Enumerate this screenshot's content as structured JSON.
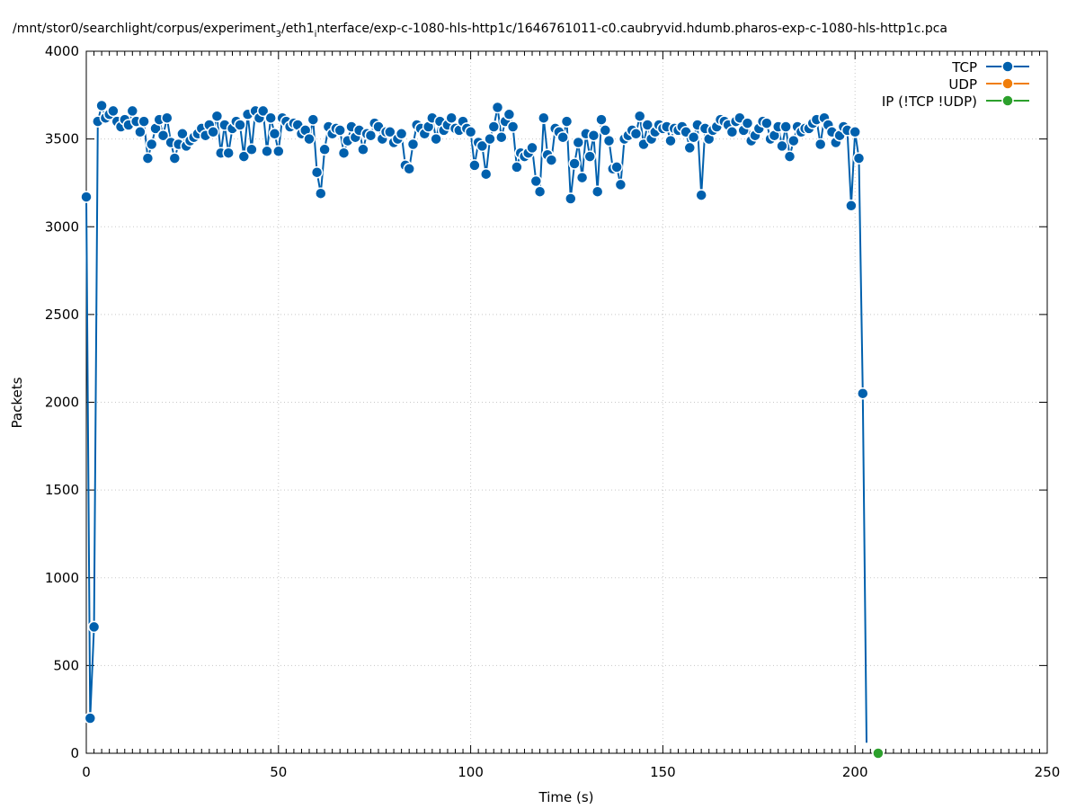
{
  "chart_data": {
    "type": "line",
    "title": "/mnt/stor0/searchlight/corpus/experiment",
    "title_sub": "3",
    "title_mid": "/eth1",
    "title_sub2": "i",
    "title_end": "nterface/exp-c-1080-hls-http1c/1646761011-c0.caubryvid.hdumb.pharos-exp-c-1080-hls-http1c.pca",
    "xlabel": "Time (s)",
    "ylabel": "Packets",
    "xlim": [
      0,
      250
    ],
    "ylim": [
      0,
      4000
    ],
    "xticks": [
      0,
      50,
      100,
      150,
      200,
      250
    ],
    "yticks": [
      0,
      500,
      1000,
      1500,
      2000,
      2500,
      3000,
      3500,
      4000
    ],
    "grid": true,
    "legend_position": "top-right",
    "colors": {
      "tcp": "#0060ad",
      "udp": "#f07d0a",
      "ip": "#2ca02c",
      "grid": "#c8c8c8"
    },
    "series": [
      {
        "name": "TCP",
        "x": [
          0,
          1,
          2,
          3,
          4,
          5,
          6,
          7,
          8,
          9,
          10,
          11,
          12,
          13,
          14,
          15,
          16,
          17,
          18,
          19,
          20,
          21,
          22,
          23,
          24,
          25,
          26,
          27,
          28,
          29,
          30,
          31,
          32,
          33,
          34,
          35,
          36,
          37,
          38,
          39,
          40,
          41,
          42,
          43,
          44,
          45,
          46,
          47,
          48,
          49,
          50,
          51,
          52,
          53,
          54,
          55,
          56,
          57,
          58,
          59,
          60,
          61,
          62,
          63,
          64,
          65,
          66,
          67,
          68,
          69,
          70,
          71,
          72,
          73,
          74,
          75,
          76,
          77,
          78,
          79,
          80,
          81,
          82,
          83,
          84,
          85,
          86,
          87,
          88,
          89,
          90,
          91,
          92,
          93,
          94,
          95,
          96,
          97,
          98,
          99,
          100,
          101,
          102,
          103,
          104,
          105,
          106,
          107,
          108,
          109,
          110,
          111,
          112,
          113,
          114,
          115,
          116,
          117,
          118,
          119,
          120,
          121,
          122,
          123,
          124,
          125,
          126,
          127,
          128,
          129,
          130,
          131,
          132,
          133,
          134,
          135,
          136,
          137,
          138,
          139,
          140,
          141,
          142,
          143,
          144,
          145,
          146,
          147,
          148,
          149,
          150,
          151,
          152,
          153,
          154,
          155,
          156,
          157,
          158,
          159,
          160,
          161,
          162,
          163,
          164,
          165,
          166,
          167,
          168,
          169,
          170,
          171,
          172,
          173,
          174,
          175,
          176,
          177,
          178,
          179,
          180,
          181,
          182,
          183,
          184,
          185,
          186,
          187,
          188,
          189,
          190,
          191,
          192,
          193,
          194,
          195,
          196,
          197,
          198,
          199,
          200,
          201,
          202,
          203
        ],
        "values": [
          3170,
          200,
          720,
          3600,
          3690,
          3620,
          3640,
          3660,
          3600,
          3570,
          3610,
          3580,
          3660,
          3600,
          3540,
          3600,
          3390,
          3470,
          3560,
          3610,
          3520,
          3620,
          3480,
          3390,
          3470,
          3530,
          3460,
          3490,
          3510,
          3530,
          3560,
          3520,
          3580,
          3540,
          3630,
          3420,
          3580,
          3420,
          3560,
          3600,
          3580,
          3400,
          3640,
          3440,
          3660,
          3620,
          3660,
          3430,
          3620,
          3530,
          3430,
          3620,
          3600,
          3570,
          3590,
          3580,
          3530,
          3550,
          3500,
          3610,
          3310,
          3190,
          3440,
          3570,
          3530,
          3560,
          3550,
          3420,
          3490,
          3570,
          3510,
          3550,
          3440,
          3530,
          3520,
          3590,
          3570,
          3500,
          3540,
          3540,
          3480,
          3500,
          3530,
          3350,
          3330,
          3470,
          3580,
          3560,
          3530,
          3570,
          3620,
          3500,
          3600,
          3550,
          3580,
          3620,
          3560,
          3550,
          3600,
          3560,
          3540,
          3350,
          3480,
          3460,
          3300,
          3500,
          3570,
          3680,
          3510,
          3600,
          3640,
          3570,
          3340,
          3420,
          3400,
          3420,
          3450,
          3260,
          3200,
          3620,
          3410,
          3380,
          3560,
          3540,
          3510,
          3600,
          3160,
          3360,
          3480,
          3280,
          3530,
          3400,
          3520,
          3200,
          3610,
          3550,
          3490,
          3330,
          3340,
          3240,
          3500,
          3520,
          3550,
          3530,
          3630,
          3470,
          3580,
          3500,
          3540,
          3580,
          3560,
          3570,
          3490,
          3560,
          3550,
          3570,
          3540,
          3450,
          3510,
          3580,
          3180,
          3560,
          3500,
          3550,
          3570,
          3610,
          3600,
          3580,
          3540,
          3600,
          3620,
          3550,
          3590,
          3490,
          3520,
          3560,
          3600,
          3590,
          3500,
          3520,
          3570,
          3460,
          3570,
          3400,
          3490,
          3570,
          3540,
          3560,
          3560,
          3590,
          3610,
          3470,
          3620,
          3580,
          3540,
          3480,
          3520,
          3570,
          3550,
          3120,
          3540,
          3390,
          2050,
          60
        ]
      },
      {
        "name": "UDP",
        "x": [],
        "values": []
      },
      {
        "name": "IP (!TCP  !UDP)",
        "x": [
          206
        ],
        "values": [
          0
        ]
      }
    ]
  }
}
